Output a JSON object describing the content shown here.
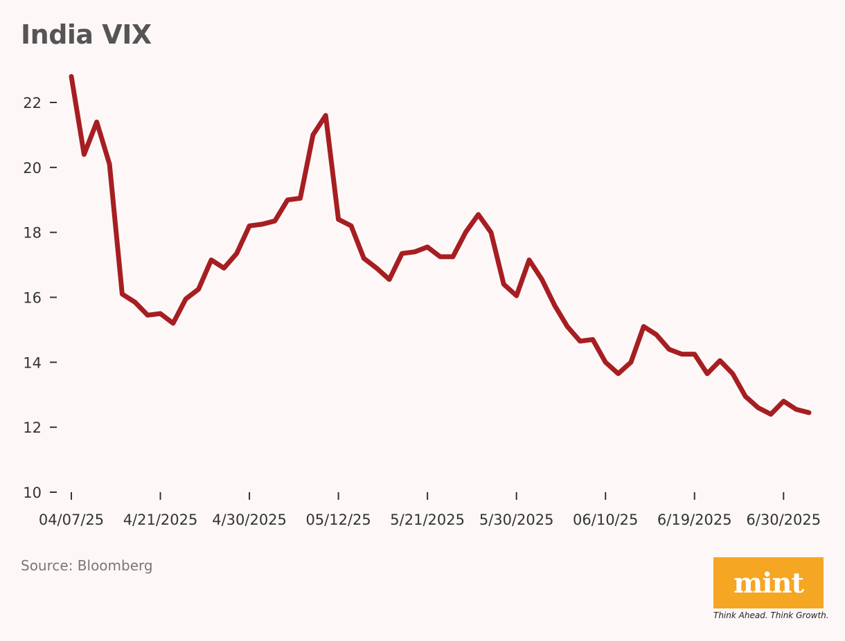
{
  "header": {
    "title": "India VIX"
  },
  "footer": {
    "source": "Source: Bloomberg",
    "logo_text": "mint",
    "tagline": "Think Ahead. Think Growth."
  },
  "colors": {
    "line": "#a61e22",
    "background": "#fdf8f7",
    "logo_bg": "#f5a623"
  },
  "chart_data": {
    "type": "line",
    "title": "India VIX",
    "xlabel": "",
    "ylabel": "",
    "ylim": [
      10,
      23
    ],
    "yticks": [
      10,
      12,
      14,
      16,
      18,
      20,
      22
    ],
    "grid": false,
    "x_tick_labels": [
      "04/07/25",
      "4/21/2025",
      "4/30/2025",
      "05/12/25",
      "5/21/2025",
      "5/30/2025",
      "06/10/25",
      "6/19/2025",
      "6/30/2025"
    ],
    "x_tick_index": [
      0,
      7,
      14,
      21,
      28,
      35,
      42,
      49,
      56
    ],
    "series": [
      {
        "name": "",
        "values": [
          22.8,
          20.4,
          21.4,
          20.1,
          16.1,
          15.85,
          15.45,
          15.5,
          15.2,
          15.95,
          16.25,
          17.15,
          16.9,
          17.35,
          18.2,
          18.25,
          18.35,
          19.0,
          19.05,
          21.0,
          21.6,
          18.4,
          18.2,
          17.2,
          16.9,
          16.55,
          17.35,
          17.4,
          17.55,
          17.25,
          17.25,
          18.0,
          18.55,
          18.0,
          16.4,
          16.05,
          17.15,
          16.55,
          15.75,
          15.1,
          14.65,
          14.7,
          14.0,
          13.65,
          14.0,
          15.1,
          14.85,
          14.4,
          14.25,
          14.25,
          13.65,
          14.05,
          13.65,
          12.95,
          12.6,
          12.4,
          12.8,
          12.55,
          12.45
        ]
      }
    ]
  }
}
